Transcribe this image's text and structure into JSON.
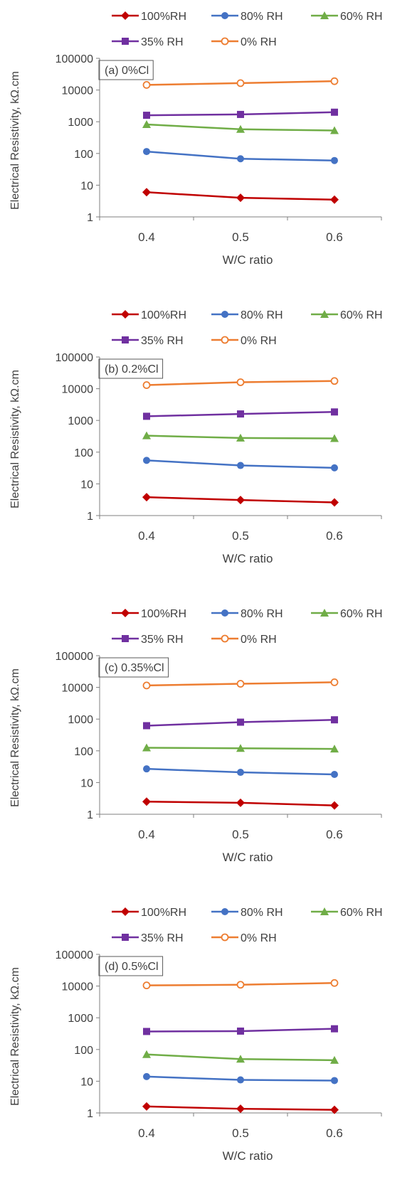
{
  "legend": {
    "labels": [
      "100%RH",
      "80% RH",
      "60% RH",
      "35% RH",
      "0% RH"
    ],
    "colors": [
      "#c00000",
      "#4472c4",
      "#70ad47",
      "#7030a0",
      "#ed7d31"
    ],
    "markers": [
      "diamond",
      "circle",
      "triangle",
      "square",
      "circle-open"
    ]
  },
  "chart_data": [
    {
      "type": "line",
      "annotation": "(a) 0%Cl",
      "xlabel": "W/C ratio",
      "ylabel": "Electrical Resistivity, kΩ.cm",
      "y_scale": "log",
      "ylim": [
        1,
        100000
      ],
      "y_ticks": [
        "1",
        "10",
        "100",
        "1000",
        "10000",
        "100000"
      ],
      "x": [
        0.4,
        0.5,
        0.6
      ],
      "x_tick_labels": [
        "0.4",
        "0.5",
        "0.6"
      ],
      "series": [
        {
          "name": "100%RH",
          "values": [
            6,
            4,
            3.5
          ]
        },
        {
          "name": "80% RH",
          "values": [
            115,
            68,
            60
          ]
        },
        {
          "name": "60% RH",
          "values": [
            820,
            580,
            530
          ]
        },
        {
          "name": "35% RH",
          "values": [
            1600,
            1700,
            2000
          ]
        },
        {
          "name": "0% RH",
          "values": [
            14500,
            16500,
            19000
          ]
        }
      ]
    },
    {
      "type": "line",
      "annotation": "(b) 0.2%Cl",
      "xlabel": "W/C ratio",
      "ylabel": "Electrical Resistivity, kΩ.cm",
      "y_scale": "log",
      "ylim": [
        1,
        100000
      ],
      "y_ticks": [
        "1",
        "10",
        "100",
        "1000",
        "10000",
        "100000"
      ],
      "x": [
        0.4,
        0.5,
        0.6
      ],
      "x_tick_labels": [
        "0.4",
        "0.5",
        "0.6"
      ],
      "series": [
        {
          "name": "100%RH",
          "values": [
            3.8,
            3.1,
            2.6
          ]
        },
        {
          "name": "80% RH",
          "values": [
            55,
            38,
            32
          ]
        },
        {
          "name": "60% RH",
          "values": [
            330,
            280,
            270
          ]
        },
        {
          "name": "35% RH",
          "values": [
            1350,
            1600,
            1850
          ]
        },
        {
          "name": "0% RH",
          "values": [
            13000,
            16000,
            17500
          ]
        }
      ]
    },
    {
      "type": "line",
      "annotation": "(c) 0.35%Cl",
      "xlabel": "W/C ratio",
      "ylabel": "Electrical Resistivity, kΩ.cm",
      "y_scale": "log",
      "ylim": [
        1,
        100000
      ],
      "y_ticks": [
        "1",
        "10",
        "100",
        "1000",
        "10000",
        "100000"
      ],
      "x": [
        0.4,
        0.5,
        0.6
      ],
      "x_tick_labels": [
        "0.4",
        "0.5",
        "0.6"
      ],
      "series": [
        {
          "name": "100%RH",
          "values": [
            2.5,
            2.3,
            1.9
          ]
        },
        {
          "name": "80% RH",
          "values": [
            27,
            21,
            18
          ]
        },
        {
          "name": "60% RH",
          "values": [
            125,
            120,
            115
          ]
        },
        {
          "name": "35% RH",
          "values": [
            620,
            800,
            950
          ]
        },
        {
          "name": "0% RH",
          "values": [
            11500,
            13000,
            14500
          ]
        }
      ]
    },
    {
      "type": "line",
      "annotation": "(d) 0.5%Cl",
      "xlabel": "W/C ratio",
      "ylabel": "Electrical Resistivity, kΩ.cm",
      "y_scale": "log",
      "ylim": [
        1,
        100000
      ],
      "y_ticks": [
        "1",
        "10",
        "100",
        "1000",
        "10000",
        "100000"
      ],
      "x": [
        0.4,
        0.5,
        0.6
      ],
      "x_tick_labels": [
        "0.4",
        "0.5",
        "0.6"
      ],
      "series": [
        {
          "name": "100%RH",
          "values": [
            1.6,
            1.35,
            1.25
          ]
        },
        {
          "name": "80% RH",
          "values": [
            14,
            11,
            10.5
          ]
        },
        {
          "name": "60% RH",
          "values": [
            70,
            50,
            46
          ]
        },
        {
          "name": "35% RH",
          "values": [
            370,
            380,
            450
          ]
        },
        {
          "name": "0% RH",
          "values": [
            10500,
            11000,
            12500
          ]
        }
      ]
    }
  ]
}
